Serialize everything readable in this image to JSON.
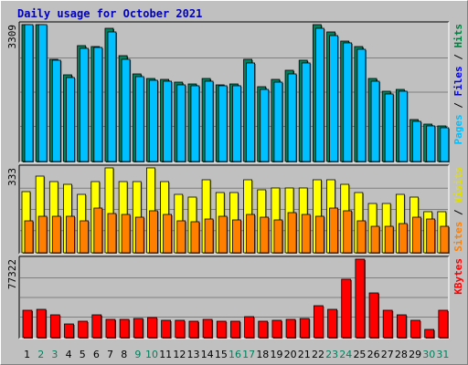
{
  "chart_data": {
    "type": "bar",
    "title": "Daily usage for October 2021",
    "days": [
      "1",
      "2",
      "3",
      "4",
      "5",
      "6",
      "7",
      "8",
      "9",
      "10",
      "11",
      "12",
      "13",
      "14",
      "15",
      "16",
      "17",
      "18",
      "19",
      "20",
      "21",
      "22",
      "23",
      "24",
      "25",
      "26",
      "27",
      "28",
      "29",
      "30",
      "31"
    ],
    "weekend_days": [
      "2",
      "3",
      "9",
      "10",
      "16",
      "17",
      "23",
      "24",
      "30",
      "31"
    ],
    "panels": [
      {
        "name": "hits-files-pages",
        "ymax_label": "3309",
        "ymax": 3309,
        "legend": [
          {
            "text": "Pages",
            "color": "#00c0ff"
          },
          {
            "text": " / ",
            "color": "#000000"
          },
          {
            "text": "Files",
            "color": "#0000ff"
          },
          {
            "text": " / ",
            "color": "#000000"
          },
          {
            "text": "Hits",
            "color": "#008040"
          }
        ],
        "series": [
          {
            "name": "Hits",
            "color": "#00805c",
            "values": [
              3309,
              3309,
              2480,
              2094,
              2796,
              2780,
              3217,
              2553,
              2111,
              1997,
              1990,
              1915,
              1886,
              2000,
              1863,
              1883,
              2472,
              1804,
              1983,
              2202,
              2443,
              3309,
              3130,
              2915,
              2780,
              2013,
              1688,
              1750,
              1006,
              915,
              868
            ]
          },
          {
            "name": "Files",
            "color": "#00c0ff",
            "values": [
              3309,
              3309,
              2452,
              2036,
              2730,
              2758,
              3130,
              2480,
              2047,
              1966,
              1932,
              1857,
              1826,
              1942,
              1821,
              1830,
              2386,
              1748,
              1915,
              2128,
              2387,
              3217,
              3044,
              2857,
              2722,
              1940,
              1630,
              1688,
              961,
              861,
              810
            ]
          },
          {
            "name": "Pages",
            "color": "#00c0ff",
            "values": []
          }
        ]
      },
      {
        "name": "visits-sites",
        "ymax_label": "333",
        "ymax": 333,
        "legend": [
          {
            "text": "Sites",
            "color": "#ff8000"
          },
          {
            "text": " / ",
            "color": "#000000"
          },
          {
            "text": "Visits",
            "color": "#e0e000"
          }
        ],
        "series": [
          {
            "name": "Visits",
            "color": "#ffff00",
            "values": [
              241,
              300,
              279,
              268,
              230,
              279,
              333,
              278,
              279,
              333,
              278,
              230,
              218,
              285,
              238,
              238,
              285,
              246,
              254,
              254,
              254,
              285,
              285,
              270,
              238,
              195,
              195,
              230,
              218,
              160,
              160
            ]
          },
          {
            "name": "Sites",
            "color": "#ff8000",
            "values": [
              125,
              143,
              145,
              143,
              125,
              175,
              155,
              150,
              140,
              163,
              150,
              125,
              120,
              133,
              143,
              130,
              150,
              140,
              130,
              158,
              150,
              143,
              175,
              163,
              125,
              105,
              105,
              115,
              140,
              133,
              105
            ]
          }
        ]
      },
      {
        "name": "kbytes",
        "ymax_label": "77322",
        "ymax": 77322,
        "legend": [
          {
            "text": "KBytes",
            "color": "#ff0000"
          }
        ],
        "series": [
          {
            "name": "KBytes",
            "color": "#ff0000",
            "values": [
              27286,
              28196,
              22735,
              13648,
              16376,
              22735,
              18183,
              18183,
              19093,
              20003,
              17273,
              17273,
              16376,
              18183,
              16376,
              16376,
              20913,
              16376,
              17273,
              18183,
              19093,
              31746,
              28196,
              57238,
              77322,
              44502,
              27286,
              22735,
              17273,
              8194,
              27286
            ]
          }
        ]
      }
    ]
  }
}
